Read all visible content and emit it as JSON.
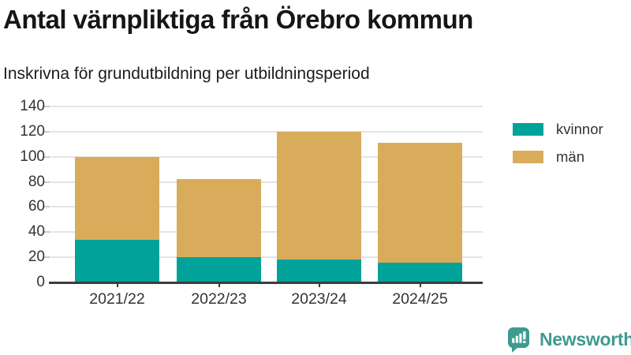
{
  "chart_data": {
    "type": "bar",
    "stacked": true,
    "title": "Antal värnpliktiga från Örebro kommun",
    "subtitle": "Inskrivna för grundutbildning per utbildningsperiod",
    "categories": [
      "2021/22",
      "2022/23",
      "2023/24",
      "2024/25"
    ],
    "series": [
      {
        "name": "kvinnor",
        "color": "#01a29a",
        "values": [
          34,
          20,
          18,
          16
        ]
      },
      {
        "name": "män",
        "color": "#d9ac5c",
        "values": [
          66,
          62,
          102,
          95
        ]
      }
    ],
    "totals": [
      100,
      82,
      120,
      111
    ],
    "ylim": [
      0,
      140
    ],
    "yticks": [
      0,
      20,
      40,
      60,
      80,
      100,
      120,
      140
    ],
    "grid": "horizontal",
    "legend_position": "right-top",
    "axis_color": "#3d3d3d",
    "gridline_color": "#e4e4e4",
    "tick_color": "#cccccc",
    "label_color": "#333333"
  },
  "branding": {
    "logo_text": "Newsworthy",
    "logo_color": "#3f9a90",
    "logo_icon": "bar-chart-speech-bubble"
  }
}
